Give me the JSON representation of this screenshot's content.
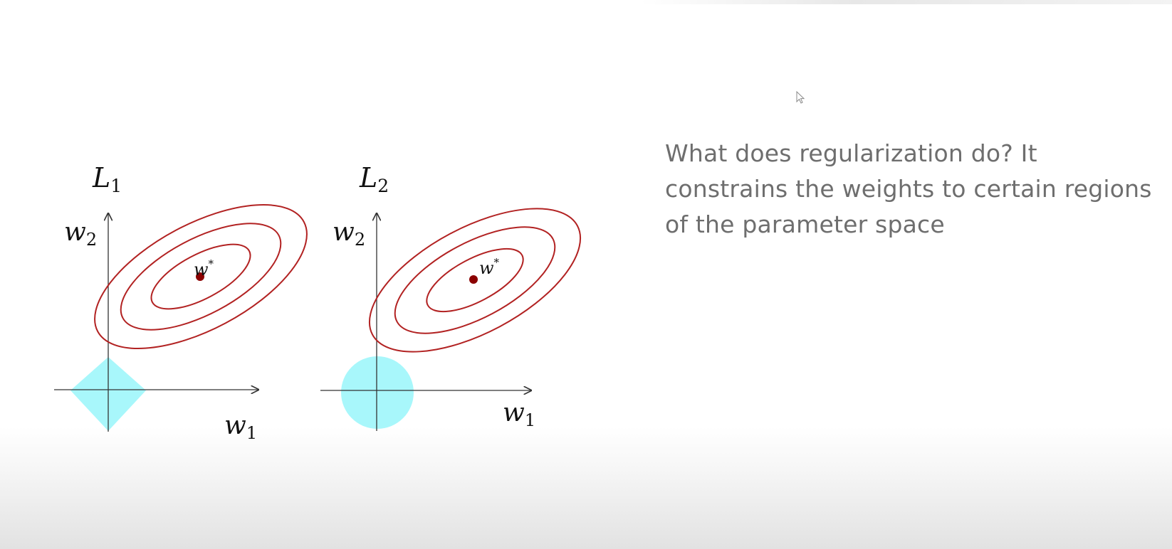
{
  "caption": {
    "line1": "What does regularization do? It",
    "line2": "constrains the weights to certain regions",
    "line3": "of the parameter space"
  },
  "panels": [
    {
      "title_base": "L",
      "title_sub": "1",
      "y_axis_base": "w",
      "y_axis_sub": "2",
      "x_axis_base": "w",
      "x_axis_sub": "1",
      "optimum_label": "w",
      "optimum_sup": "*",
      "constraint_shape": "diamond"
    },
    {
      "title_base": "L",
      "title_sub": "2",
      "y_axis_base": "w",
      "y_axis_sub": "2",
      "x_axis_base": "w",
      "x_axis_sub": "1",
      "optimum_label": "w",
      "optimum_sup": "*",
      "constraint_shape": "circle"
    }
  ],
  "colors": {
    "contour": "#b22222",
    "constraint_region": "#a8f7fb",
    "optimum_point": "#8b0000",
    "axis": "#333333",
    "caption_text": "#6e6e6e"
  },
  "icons": {
    "cursor": "mouse-pointer-icon"
  }
}
